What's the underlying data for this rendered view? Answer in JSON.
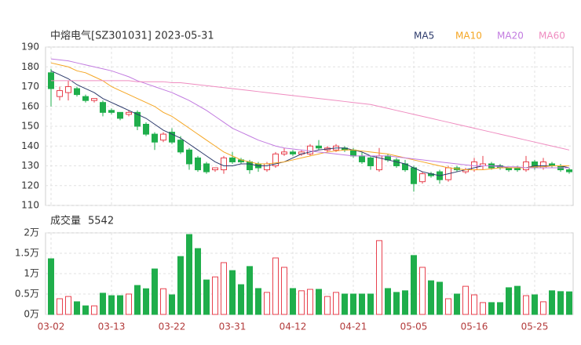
{
  "chart_data": [
    {
      "type": "candlestick",
      "title": "中熔电气[SZ301031] 2023-05-31",
      "open": [
        177,
        165,
        167,
        169,
        165,
        163,
        162,
        158,
        157,
        156,
        157,
        151,
        146,
        143,
        147,
        143,
        138,
        134,
        131,
        128,
        128,
        134,
        133,
        132,
        131,
        128,
        130,
        136,
        137,
        136,
        136,
        140,
        138,
        138,
        139,
        138,
        135,
        134,
        128,
        135,
        133,
        131,
        129,
        122,
        126,
        127,
        123,
        129,
        127,
        128,
        130,
        131,
        130,
        129,
        129,
        128,
        132,
        129,
        131,
        130,
        128
      ],
      "high": [
        179,
        170,
        173,
        170,
        166,
        164,
        163,
        159,
        157,
        158,
        158,
        152,
        147,
        147,
        149,
        145,
        139,
        135,
        132,
        129,
        135,
        137,
        134,
        133,
        132,
        132,
        137,
        139,
        138,
        138,
        141,
        143,
        140,
        141,
        140,
        139,
        137,
        135,
        139,
        136,
        134,
        133,
        130,
        127,
        127,
        128,
        130,
        130,
        129,
        134,
        135,
        132,
        131,
        129,
        130,
        135,
        133,
        134,
        132,
        131,
        129
      ],
      "low": [
        160,
        163,
        163,
        165,
        162,
        162,
        155,
        156,
        153,
        155,
        148,
        145,
        138,
        142,
        141,
        136,
        128,
        127,
        126,
        127,
        126,
        131,
        131,
        126,
        127,
        127,
        129,
        135,
        135,
        135,
        135,
        138,
        137,
        137,
        137,
        134,
        131,
        128,
        127,
        132,
        129,
        127,
        117,
        121,
        124,
        121,
        122,
        127,
        126,
        127,
        128,
        128,
        128,
        127,
        127,
        127,
        128,
        128,
        129,
        127,
        126
      ],
      "close": [
        169,
        168,
        170,
        166,
        163,
        164,
        157,
        157,
        154,
        157,
        150,
        146,
        142,
        146,
        142,
        137,
        131,
        128,
        127,
        129,
        134,
        132,
        132,
        128,
        129,
        131,
        136,
        137,
        136,
        137,
        140,
        139,
        139,
        140,
        138,
        135,
        132,
        130,
        135,
        133,
        130,
        128,
        121,
        126,
        125,
        123,
        129,
        128,
        128,
        132,
        131,
        129,
        129,
        128,
        128,
        132,
        129,
        132,
        130,
        128,
        127
      ],
      "up_color": "#e8414e",
      "down_color": "#1fae4b",
      "series": [
        {
          "name": "MA5",
          "color": "#2c3a6b",
          "values": [
            178,
            176,
            174,
            171,
            169,
            167,
            164,
            162,
            160,
            158,
            156,
            154,
            151,
            148,
            146,
            144,
            141,
            138,
            135,
            132,
            130,
            130,
            131,
            131,
            130,
            130,
            131,
            132,
            134,
            136,
            137,
            138,
            138.5,
            139,
            139,
            138,
            137,
            135,
            134,
            133,
            132,
            131,
            129,
            127,
            126,
            125,
            126,
            127,
            128,
            129,
            130,
            130,
            130,
            129,
            129,
            129,
            130,
            130,
            130,
            130,
            129
          ]
        },
        {
          "name": "MA10",
          "color": "#f5a623",
          "values": [
            182,
            181,
            180,
            178,
            177,
            175,
            173,
            170,
            168,
            166,
            164,
            162,
            160,
            157,
            155,
            152,
            149,
            146,
            143,
            140,
            137,
            135,
            133,
            132,
            131,
            131,
            131.5,
            132,
            133,
            134,
            135,
            136,
            137,
            137.5,
            138,
            138,
            137.5,
            137,
            136.5,
            136,
            135,
            134,
            133,
            132,
            131,
            130,
            129,
            128.5,
            128,
            128,
            128,
            128.5,
            129,
            129,
            129,
            129,
            129.5,
            129.5,
            130,
            130,
            130
          ]
        },
        {
          "name": "MA20",
          "color": "#c27be0",
          "values": [
            184,
            183.5,
            183,
            182,
            181,
            180,
            179,
            178,
            176.5,
            175,
            173,
            171.5,
            170,
            168.5,
            167,
            165,
            163,
            160.5,
            158,
            155,
            152,
            149,
            147,
            145,
            143,
            141.5,
            140,
            139,
            138.5,
            138,
            137.5,
            137,
            136.5,
            136,
            135.5,
            135,
            135,
            135,
            135,
            135,
            134.5,
            134,
            133.5,
            133,
            132.5,
            132,
            131.5,
            131,
            130.5,
            130,
            130,
            130,
            129.5,
            129.5,
            129.5,
            129,
            129,
            129,
            129,
            129,
            129
          ]
        },
        {
          "name": "MA60",
          "color": "#ef8cc0",
          "values": [
            173,
            173,
            173,
            173,
            173,
            173,
            173,
            173,
            173,
            173,
            172.5,
            172.5,
            172.5,
            172.5,
            172,
            172,
            171.5,
            171,
            170.5,
            170,
            169.5,
            169,
            168.5,
            168,
            167.5,
            167,
            166.5,
            166,
            165.5,
            165,
            164.5,
            164,
            163.5,
            163,
            162.5,
            162,
            161.5,
            161,
            160,
            159,
            158,
            157,
            156,
            155,
            154,
            153,
            152,
            151,
            150,
            149,
            148,
            147,
            146,
            145,
            144,
            143,
            142,
            141,
            140,
            139,
            138
          ]
        }
      ],
      "ylim": [
        110,
        190
      ],
      "yticks": [
        110,
        120,
        130,
        140,
        150,
        160,
        170,
        180,
        190
      ],
      "grid": true
    },
    {
      "type": "bar",
      "title": "成交量",
      "categories": [
        "03-02",
        null,
        null,
        null,
        null,
        null,
        null,
        "03-13",
        null,
        null,
        null,
        null,
        null,
        null,
        "03-22",
        null,
        null,
        null,
        null,
        null,
        null,
        "03-31",
        null,
        null,
        null,
        null,
        null,
        null,
        "04-12",
        null,
        null,
        null,
        null,
        null,
        null,
        "04-21",
        null,
        null,
        null,
        null,
        null,
        null,
        "05-05",
        null,
        null,
        null,
        null,
        null,
        null,
        "05-16",
        null,
        null,
        null,
        null,
        null,
        null,
        "05-25",
        null,
        null,
        null,
        null
      ],
      "values": [
        13650,
        3850,
        4400,
        3100,
        2100,
        2100,
        5200,
        4600,
        4600,
        5000,
        7100,
        6300,
        11150,
        6300,
        4800,
        14200,
        19600,
        16150,
        8450,
        9200,
        12700,
        10750,
        7300,
        11750,
        6350,
        5400,
        13850,
        11550,
        6350,
        5800,
        6150,
        6150,
        4400,
        5400,
        5000,
        5000,
        5000,
        5000,
        18100,
        6350,
        5400,
        5800,
        14450,
        11550,
        8250,
        7900,
        3850,
        5000,
        6900,
        4800,
        2900,
        2900,
        2900,
        6550,
        6900,
        4600,
        4800,
        3100,
        5800,
        5600,
        5542
      ],
      "ylim": [
        0,
        20000
      ],
      "yticks": [
        {
          "value": 0,
          "label": "0万"
        },
        {
          "value": 5000,
          "label": "0.5万"
        },
        {
          "value": 10000,
          "label": "1万"
        },
        {
          "value": 15000,
          "label": "1.5万"
        },
        {
          "value": 20000,
          "label": "2万"
        }
      ],
      "grid": true
    }
  ]
}
